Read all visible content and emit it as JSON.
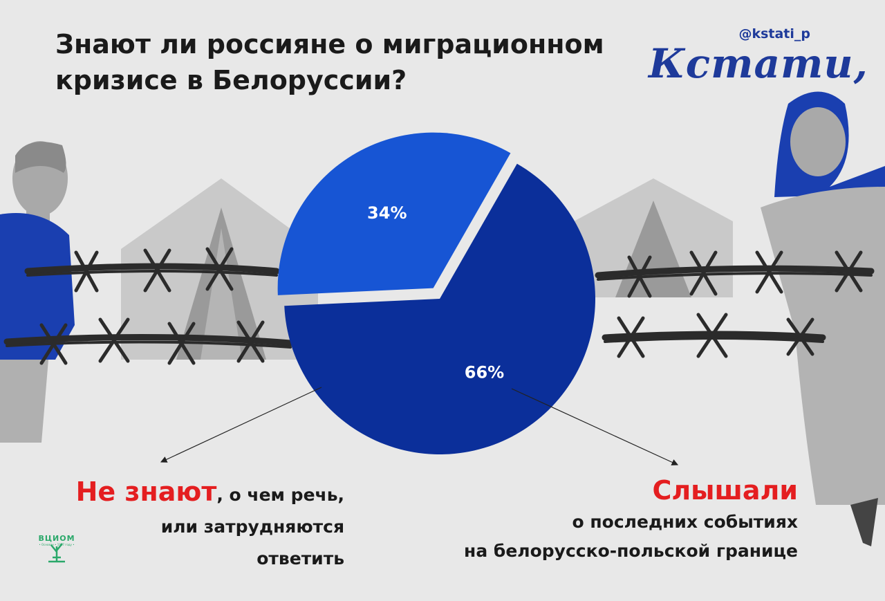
{
  "title": "Знают ли россияне о миграционном кризисе в Белоруссии?",
  "brand": {
    "handle": "@kstati_p",
    "name": "Кстати,"
  },
  "labels": {
    "left_accent": "Не знают",
    "left_rest_line1": ", о чем речь,",
    "left_rest_line2": "или затрудняются",
    "left_rest_line3": "ответить",
    "right_accent": "Слышали",
    "right_line1": "о последних событиях",
    "right_line2": "на белорусско-польской границе"
  },
  "logo": {
    "name": "ВЦИОМ",
    "since": "• Основан • 1987 году •"
  },
  "colors": {
    "background": "#e8e8e8",
    "slice_dont_know": "#1755d4",
    "slice_heard": "#0b2f9a",
    "accent_red": "#e41e20",
    "brand_blue": "#1e3a9a",
    "logo_green": "#2aa86a"
  },
  "chart_data": {
    "type": "pie",
    "slices": [
      {
        "label": "Не знают, о чем речь, или затрудняются ответить",
        "value": 34,
        "display": "34%"
      },
      {
        "label": "Слышали о последних событиях на белорусско-польской границе",
        "value": 66,
        "display": "66%"
      }
    ]
  }
}
